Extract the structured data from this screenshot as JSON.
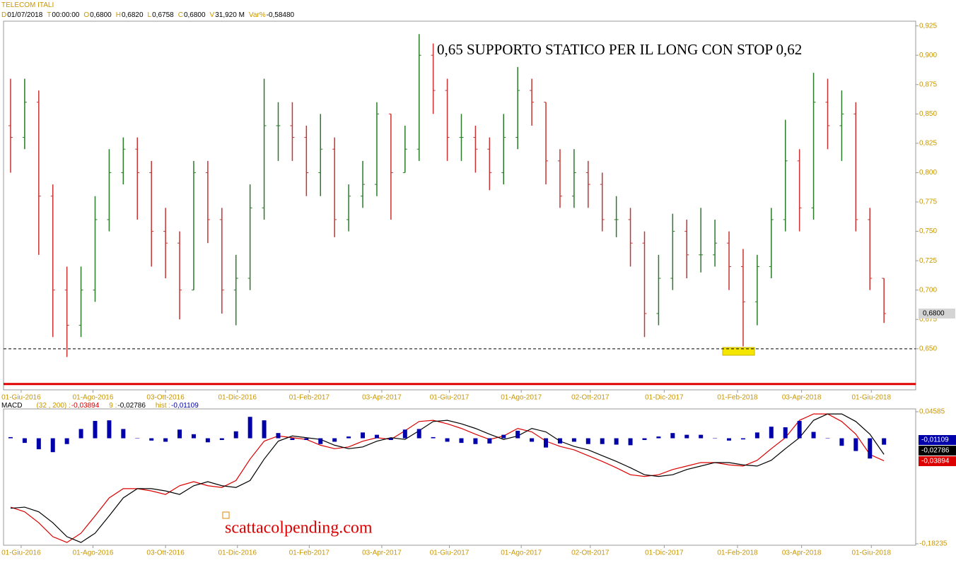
{
  "chart_data": [
    {
      "type": "ohlc",
      "title": "TELECOM ITALI",
      "info": [
        {
          "key": "D",
          "text": "01/07/2018"
        },
        {
          "key": "T",
          "text": "00:00:00"
        },
        {
          "key": "O",
          "text": "0,6800"
        },
        {
          "key": "H",
          "text": "0,6820"
        },
        {
          "key": "L",
          "text": "0,6758"
        },
        {
          "key": "C",
          "text": "0,6800"
        },
        {
          "key": "V",
          "text": "31,920 M"
        },
        {
          "key": "Var%",
          "text": "-0,58480"
        }
      ],
      "annotation": "0,65 SUPPORTO STATICO PER IL LONG CON STOP 0,62",
      "support": 0.65,
      "stop": 0.62,
      "last_label": "0,6800",
      "up_color": "#2a7a2a",
      "down_color": "#c83232",
      "xlim": [
        -0.5,
        64.25
      ],
      "xticks": [
        {
          "value": 0.75,
          "label": "01-Giu-2016"
        },
        {
          "value": 5.85,
          "label": "01-Ago-2016"
        },
        {
          "value": 11,
          "label": "03-Ott-2016"
        },
        {
          "value": 16.1,
          "label": "01-Dic-2016"
        },
        {
          "value": 21.2,
          "label": "01-Feb-2017"
        },
        {
          "value": 26.35,
          "label": "03-Apr-2017"
        },
        {
          "value": 31.15,
          "label": "01-Giu-2017"
        },
        {
          "value": 36.25,
          "label": "01-Ago-2017"
        },
        {
          "value": 41.15,
          "label": "02-Ott-2017"
        },
        {
          "value": 46.4,
          "label": "01-Dic-2017"
        },
        {
          "value": 51.6,
          "label": "01-Feb-2018"
        },
        {
          "value": 56.15,
          "label": "03-Apr-2018"
        },
        {
          "value": 61.1,
          "label": "01-Giu-2018"
        }
      ],
      "ylim": [
        0.615,
        0.929
      ],
      "yticks": [
        {
          "value": 0.925,
          "label": "0,925"
        },
        {
          "value": 0.9,
          "label": "0,900"
        },
        {
          "value": 0.875,
          "label": "0,875"
        },
        {
          "value": 0.85,
          "label": "0,850"
        },
        {
          "value": 0.825,
          "label": "0,825"
        },
        {
          "value": 0.8,
          "label": "0,800"
        },
        {
          "value": 0.775,
          "label": "0,775"
        },
        {
          "value": 0.75,
          "label": "0,750"
        },
        {
          "value": 0.725,
          "label": "0,725"
        },
        {
          "value": 0.7,
          "label": "0,700"
        },
        {
          "value": 0.675,
          "label": "0,675"
        },
        {
          "value": 0.65,
          "label": "0,650"
        }
      ],
      "open": [
        0.84,
        0.83,
        0.86,
        0.78,
        0.7,
        0.67,
        0.7,
        0.76,
        0.8,
        0.82,
        0.8,
        0.75,
        0.74,
        0.7,
        0.8,
        0.76,
        0.7,
        0.71,
        0.77,
        0.84,
        0.84,
        0.83,
        0.8,
        0.82,
        0.76,
        0.78,
        0.79,
        0.85,
        0.8,
        0.82,
        0.9,
        0.87,
        0.83,
        0.83,
        0.82,
        0.8,
        0.83,
        0.87,
        0.86,
        0.81,
        0.78,
        0.8,
        0.79,
        0.76,
        0.76,
        0.74,
        0.68,
        0.71,
        0.75,
        0.73,
        0.73,
        0.74,
        0.72,
        0.69,
        0.72,
        0.76,
        0.81,
        0.77,
        0.86,
        0.84,
        0.85,
        0.76,
        0.71
      ],
      "high": [
        0.88,
        0.88,
        0.87,
        0.79,
        0.72,
        0.72,
        0.78,
        0.82,
        0.83,
        0.83,
        0.81,
        0.77,
        0.75,
        0.81,
        0.81,
        0.77,
        0.73,
        0.79,
        0.88,
        0.86,
        0.86,
        0.84,
        0.85,
        0.83,
        0.79,
        0.81,
        0.86,
        0.85,
        0.84,
        0.918,
        0.91,
        0.88,
        0.85,
        0.84,
        0.83,
        0.85,
        0.89,
        0.88,
        0.86,
        0.82,
        0.82,
        0.81,
        0.8,
        0.78,
        0.77,
        0.75,
        0.73,
        0.765,
        0.76,
        0.77,
        0.76,
        0.75,
        0.735,
        0.73,
        0.77,
        0.845,
        0.82,
        0.885,
        0.88,
        0.87,
        0.86,
        0.77,
        0.71
      ],
      "low": [
        0.8,
        0.82,
        0.73,
        0.66,
        0.643,
        0.66,
        0.69,
        0.75,
        0.79,
        0.76,
        0.72,
        0.71,
        0.675,
        0.7,
        0.74,
        0.68,
        0.67,
        0.7,
        0.76,
        0.81,
        0.81,
        0.78,
        0.78,
        0.745,
        0.75,
        0.77,
        0.78,
        0.76,
        0.8,
        0.81,
        0.85,
        0.81,
        0.81,
        0.8,
        0.785,
        0.79,
        0.82,
        0.84,
        0.79,
        0.77,
        0.77,
        0.77,
        0.75,
        0.745,
        0.72,
        0.66,
        0.67,
        0.7,
        0.71,
        0.715,
        0.72,
        0.7,
        0.652,
        0.67,
        0.71,
        0.75,
        0.75,
        0.76,
        0.82,
        0.81,
        0.75,
        0.7,
        0.672
      ],
      "close": [
        0.83,
        0.86,
        0.78,
        0.7,
        0.67,
        0.7,
        0.76,
        0.8,
        0.82,
        0.8,
        0.75,
        0.74,
        0.7,
        0.8,
        0.76,
        0.7,
        0.71,
        0.77,
        0.84,
        0.84,
        0.83,
        0.8,
        0.82,
        0.76,
        0.78,
        0.79,
        0.85,
        0.8,
        0.82,
        0.9,
        0.87,
        0.83,
        0.83,
        0.82,
        0.8,
        0.83,
        0.87,
        0.86,
        0.81,
        0.78,
        0.8,
        0.79,
        0.76,
        0.76,
        0.74,
        0.68,
        0.71,
        0.75,
        0.73,
        0.73,
        0.74,
        0.72,
        0.69,
        0.72,
        0.76,
        0.81,
        0.77,
        0.86,
        0.84,
        0.85,
        0.76,
        0.71,
        0.68
      ]
    },
    {
      "type": "macd",
      "title": "MACD",
      "watermark": "scattacolpending.com",
      "xlim": [
        -0.5,
        64.25
      ],
      "xticks": [
        {
          "value": 0.75,
          "label": "01-Giu-2016"
        },
        {
          "value": 5.85,
          "label": "01-Ago-2016"
        },
        {
          "value": 11,
          "label": "03-Ott-2016"
        },
        {
          "value": 16.1,
          "label": "01-Dic-2016"
        },
        {
          "value": 21.2,
          "label": "01-Feb-2017"
        },
        {
          "value": 26.35,
          "label": "03-Apr-2017"
        },
        {
          "value": 31.15,
          "label": "01-Giu-2017"
        },
        {
          "value": 36.25,
          "label": "01-Ago-2017"
        },
        {
          "value": 41.15,
          "label": "02-Ott-2017"
        },
        {
          "value": 46.4,
          "label": "01-Dic-2017"
        },
        {
          "value": 51.6,
          "label": "01-Feb-2018"
        },
        {
          "value": 56.15,
          "label": "03-Apr-2018"
        },
        {
          "value": 61.1,
          "label": "01-Giu-2018"
        }
      ],
      "ylim": [
        -0.1848,
        0.0507
      ],
      "yticks": [
        {
          "value": 0.04585,
          "label": "0,04585"
        },
        {
          "value": -0.18235,
          "label": "-0,18235"
        }
      ],
      "series": [
        {
          "name": "(32 , 200) :",
          "kind": "line",
          "color": "#dd0000",
          "last_label": "-0,03894",
          "values": [
            -0.119,
            -0.127,
            -0.146,
            -0.17,
            -0.18,
            -0.164,
            -0.134,
            -0.103,
            -0.087,
            -0.087,
            -0.091,
            -0.097,
            -0.082,
            -0.075,
            -0.082,
            -0.085,
            -0.073,
            -0.036,
            -0.005,
            0.004,
            0.001,
            -0.002,
            -0.012,
            -0.018,
            -0.015,
            -0.005,
            0.001,
            -0.002,
            0.013,
            0.029,
            0.031,
            0.025,
            0.017,
            0.007,
            -0.002,
            0.004,
            0.017,
            0.011,
            -0.005,
            -0.014,
            -0.02,
            -0.03,
            -0.04,
            -0.051,
            -0.063,
            -0.066,
            -0.063,
            -0.054,
            -0.048,
            -0.042,
            -0.042,
            -0.046,
            -0.048,
            -0.038,
            -0.018,
            0.001,
            0.031,
            0.042,
            0.042,
            0.029,
            0.007,
            -0.028,
            -0.03894
          ]
        },
        {
          "name": "9 :",
          "kind": "line",
          "color": "#000000",
          "last_label": "-0,02786",
          "values": [
            -0.121,
            -0.119,
            -0.127,
            -0.146,
            -0.17,
            -0.18,
            -0.164,
            -0.134,
            -0.103,
            -0.087,
            -0.087,
            -0.091,
            -0.097,
            -0.082,
            -0.075,
            -0.082,
            -0.085,
            -0.073,
            -0.036,
            -0.005,
            0.004,
            0.001,
            -0.002,
            -0.012,
            -0.018,
            -0.015,
            -0.005,
            0.001,
            -0.002,
            0.013,
            0.029,
            0.031,
            0.025,
            0.017,
            0.007,
            -0.002,
            0.004,
            0.017,
            0.011,
            -0.005,
            -0.014,
            -0.02,
            -0.03,
            -0.04,
            -0.051,
            -0.063,
            -0.066,
            -0.063,
            -0.054,
            -0.048,
            -0.042,
            -0.042,
            -0.046,
            -0.048,
            -0.038,
            -0.018,
            0.001,
            0.031,
            0.042,
            0.042,
            0.029,
            0.007,
            -0.02786
          ]
        },
        {
          "name": "hist :",
          "kind": "hist",
          "color": "#0000aa",
          "last_label": "-0,01109",
          "values": [
            0.002,
            -0.008,
            -0.019,
            -0.024,
            -0.01,
            0.016,
            0.03,
            0.031,
            0.016,
            0,
            -0.004,
            -0.006,
            0.015,
            0.007,
            -0.007,
            -0.003,
            0.012,
            0.037,
            0.031,
            0.009,
            -0.003,
            -0.003,
            -0.01,
            -0.006,
            0.003,
            0.01,
            0.006,
            -0.003,
            0.015,
            0.016,
            0.002,
            -0.006,
            -0.008,
            -0.01,
            -0.009,
            0.006,
            0.013,
            -0.006,
            -0.016,
            -0.009,
            -0.006,
            -0.01,
            -0.01,
            -0.011,
            -0.012,
            -0.003,
            0.003,
            0.009,
            0.006,
            0.006,
            0,
            -0.004,
            -0.002,
            0.01,
            0.02,
            0.019,
            0.03,
            0.011,
            0,
            -0.013,
            -0.022,
            -0.035,
            -0.01109
          ]
        }
      ]
    }
  ]
}
